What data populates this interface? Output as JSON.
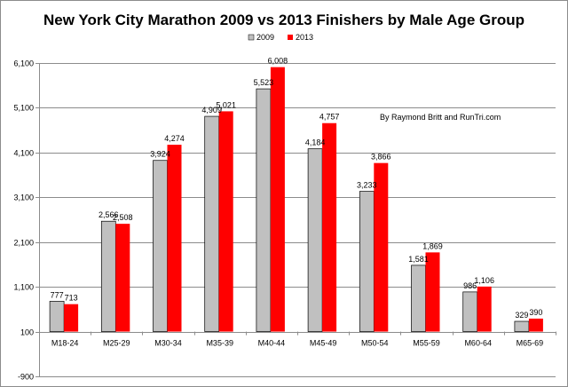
{
  "chart_data": {
    "type": "bar",
    "title": "New York City Marathon 2009 vs 2013 Finishers by Male Age Group",
    "categories": [
      "M18-24",
      "M25-29",
      "M30-34",
      "M35-39",
      "M40-44",
      "M45-49",
      "M50-54",
      "M55-59",
      "M60-64",
      "M65-69"
    ],
    "series": [
      {
        "name": "2009",
        "color": "#c0c0c0",
        "values": [
          777,
          2566,
          3924,
          4909,
          5523,
          4184,
          3233,
          1581,
          986,
          329
        ]
      },
      {
        "name": "2013",
        "color": "#ff0000",
        "values": [
          713,
          2508,
          4274,
          5021,
          6008,
          4757,
          3866,
          1869,
          1106,
          390
        ]
      }
    ],
    "data_labels": {
      "2009": [
        "777",
        "2,566",
        "3,924",
        "4,909",
        "5,523",
        "4,184",
        "3,233",
        "1,581",
        "986",
        "329"
      ],
      "2013": [
        "713",
        "2,508",
        "4,274",
        "5,021",
        "6,008",
        "4,757",
        "3,866",
        "1,869",
        "1,106",
        "390"
      ]
    },
    "yticks": [
      -900,
      100,
      1100,
      2100,
      3100,
      4100,
      5100,
      6100
    ],
    "ytick_labels": [
      "-900",
      "100",
      "1,100",
      "2,100",
      "3,100",
      "4,100",
      "5,100",
      "6,100"
    ],
    "ylim": [
      -900,
      6100
    ],
    "baseline": 100,
    "xlabel": "",
    "ylabel": "",
    "grid": true,
    "legend_position": "top-center",
    "annotation": "By Raymond Britt and RunTri.com"
  }
}
